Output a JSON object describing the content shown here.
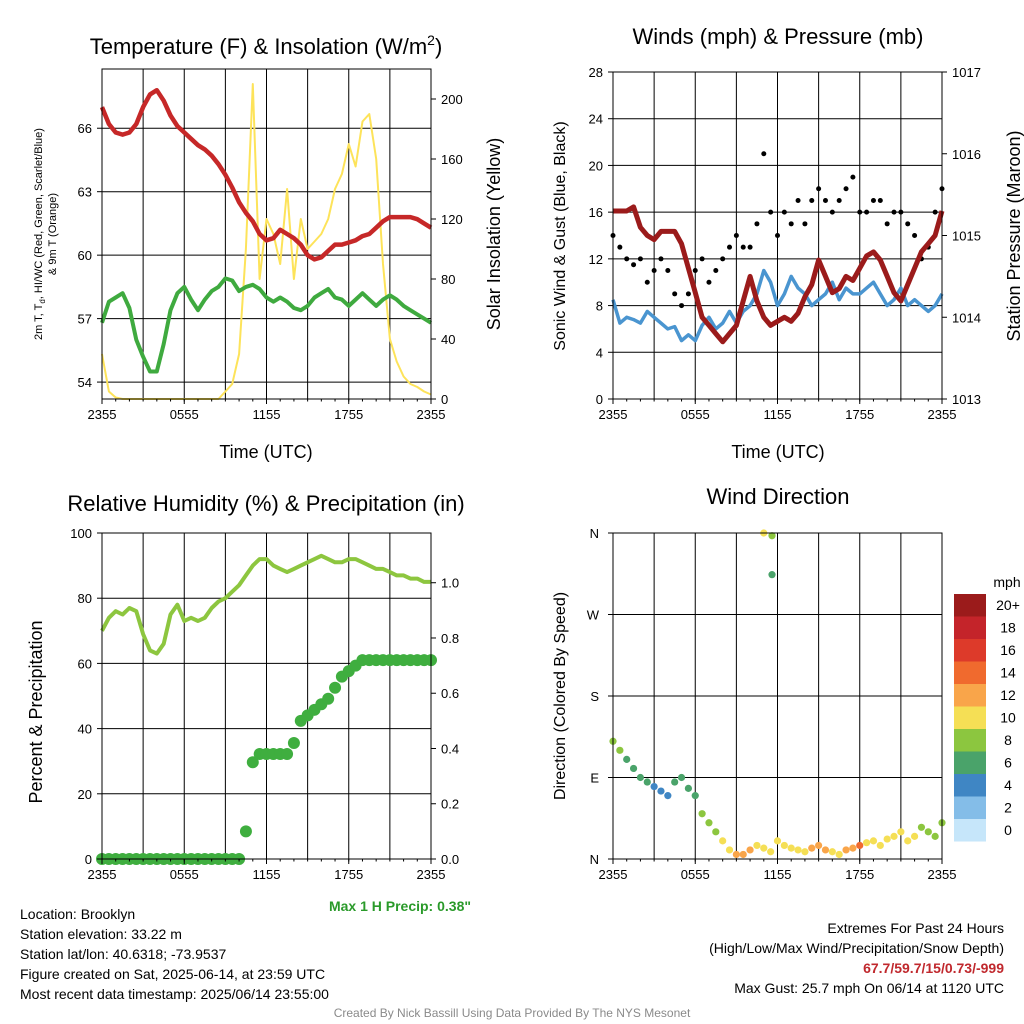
{
  "panels": {
    "temperature": {
      "title": "Temperature (F) & Insolation (W/m",
      "title_sup": "2",
      "title_end": ")",
      "ylabel_line1": "2m T, T",
      "ylabel_sub": "d",
      "ylabel_line1b": ", HI/WC (Red, Green, Scarlet/Blue)",
      "ylabel_line2": "& 9m T (Orange)",
      "y2label": "Solar Insolation (Yellow)",
      "xlabel": "Time (UTC)"
    },
    "winds": {
      "title": "Winds (mph) & Pressure (mb)",
      "ylabel": "Sonic Wind & Gust (Blue, Black)",
      "y2label": "Station Pressure (Maroon)",
      "xlabel": "Time (UTC)"
    },
    "humidity": {
      "title": "Relative Humidity (%) & Precipitation (in)",
      "ylabel": "Percent & Precipitation",
      "max_precip": "Max 1 H Precip: 0.38\""
    },
    "direction": {
      "title": "Wind Direction",
      "ylabel": "Direction (Colored By Speed)",
      "legend_title": "mph"
    }
  },
  "info": {
    "location": "Location: Brooklyn",
    "elevation": "Station elevation: 33.22 m",
    "latlon": "Station lat/lon: 40.6318; -73.9537",
    "created": "Figure created on Sat, 2025-06-14, at 23:59 UTC",
    "recent": "Most recent data timestamp: 2025/06/14 23:55:00",
    "extremes_title": "Extremes For Past 24 Hours",
    "extremes_sub": "(High/Low/Max Wind/Precipitation/Snow Depth)",
    "extremes_values": "67.7/59.7/15/0.73/-999",
    "max_gust": "Max Gust: 25.7 mph On 06/14 at 1120 UTC"
  },
  "credit": "Created By Nick Bassill Using Data Provided By The NYS Mesonet",
  "colors": {
    "temp": "#c62828",
    "heat_index": "#3faa3f",
    "scarlet_blue": "#4a90c8",
    "insolation": "#fde35a",
    "wind": "#4a95d0",
    "gust": "#000000",
    "pressure": "#9b1b1b",
    "rh": "#8dc63f",
    "precip": "#3fae3f",
    "max_precip_text": "#2a9a2a"
  },
  "chart_data": [
    {
      "type": "line",
      "title": "Temperature (F) & Insolation (W/m2)",
      "xlabel": "Time (UTC)",
      "ylabel": "2m T, Td, HI/WC (Red, Green, Scarlet/Blue) & 9m T (Orange)",
      "y2label": "Solar Insolation (Yellow)",
      "x_hours": [
        0,
        0.5,
        1,
        1.5,
        2,
        2.5,
        3,
        3.5,
        4,
        4.5,
        5,
        5.5,
        6,
        6.5,
        7,
        7.5,
        8,
        8.5,
        9,
        9.5,
        10,
        10.5,
        11,
        11.5,
        12,
        12.5,
        13,
        13.5,
        14,
        14.5,
        15,
        15.5,
        16,
        16.5,
        17,
        17.5,
        18,
        18.5,
        19,
        19.5,
        20,
        20.5,
        21,
        21.5,
        22,
        22.5,
        23,
        23.5,
        24
      ],
      "xticks": [
        "2355",
        "0555",
        "1155",
        "1755",
        "2355"
      ],
      "ylim": [
        53.2,
        68.8
      ],
      "yticks": [
        54,
        57,
        60,
        63,
        66
      ],
      "y2lim": [
        0,
        220
      ],
      "y2ticks": [
        0,
        40,
        80,
        120,
        160,
        200
      ],
      "series": [
        {
          "name": "2m T (Red)",
          "axis": "left",
          "values": [
            67,
            66.2,
            65.8,
            65.7,
            65.8,
            66.2,
            67,
            67.6,
            67.8,
            67.3,
            66.6,
            66.1,
            65.8,
            65.5,
            65.2,
            65,
            64.7,
            64.3,
            63.8,
            63.2,
            62.5,
            62,
            61.6,
            61,
            60.7,
            60.8,
            61.2,
            61,
            60.8,
            60.5,
            60,
            59.8,
            59.9,
            60.2,
            60.5,
            60.5,
            60.6,
            60.7,
            60.9,
            61,
            61.3,
            61.6,
            61.8,
            61.8,
            61.8,
            61.8,
            61.7,
            61.5,
            61.3
          ]
        },
        {
          "name": "Heat Index / Dew Point (Green)",
          "axis": "left",
          "values": [
            56.8,
            57.8,
            58,
            58.2,
            57.5,
            56,
            55.2,
            54.5,
            54.5,
            55.8,
            57.4,
            58.2,
            58.5,
            57.9,
            57.4,
            57.9,
            58.3,
            58.5,
            58.9,
            58.8,
            58.3,
            58.5,
            58.6,
            58.4,
            58,
            57.8,
            58,
            57.8,
            57.5,
            57.4,
            57.6,
            58,
            58.2,
            58.4,
            58,
            57.9,
            57.6,
            57.9,
            58.2,
            57.9,
            57.6,
            57.9,
            58.1,
            57.9,
            57.6,
            57.4,
            57.2,
            57,
            56.8
          ]
        },
        {
          "name": "Solar Insolation (Yellow)",
          "axis": "right",
          "values": [
            30,
            5,
            1,
            0,
            0,
            0,
            0,
            0,
            0,
            0,
            0,
            0,
            0,
            0,
            0,
            0,
            0,
            0,
            5,
            10,
            30,
            100,
            210,
            80,
            120,
            110,
            90,
            140,
            80,
            120,
            100,
            105,
            110,
            120,
            140,
            150,
            170,
            155,
            185,
            190,
            160,
            90,
            40,
            25,
            15,
            10,
            8,
            5,
            3
          ]
        }
      ]
    },
    {
      "type": "line",
      "title": "Winds (mph) & Pressure (mb)",
      "xlabel": "Time (UTC)",
      "ylabel": "Sonic Wind & Gust (Blue, Black)",
      "y2label": "Station Pressure (Maroon)",
      "x_hours": [
        0,
        0.5,
        1,
        1.5,
        2,
        2.5,
        3,
        3.5,
        4,
        4.5,
        5,
        5.5,
        6,
        6.5,
        7,
        7.5,
        8,
        8.5,
        9,
        9.5,
        10,
        10.5,
        11,
        11.5,
        12,
        12.5,
        13,
        13.5,
        14,
        14.5,
        15,
        15.5,
        16,
        16.5,
        17,
        17.5,
        18,
        18.5,
        19,
        19.5,
        20,
        20.5,
        21,
        21.5,
        22,
        22.5,
        23,
        23.5,
        24
      ],
      "xticks": [
        "2355",
        "0555",
        "1155",
        "1755",
        "2355"
      ],
      "ylim": [
        0,
        28
      ],
      "yticks": [
        0,
        4,
        8,
        12,
        16,
        20,
        24,
        28
      ],
      "y2lim": [
        1013,
        1017
      ],
      "y2ticks": [
        1013,
        1014,
        1015,
        1016,
        1017
      ],
      "series": [
        {
          "name": "Sonic Wind (Blue)",
          "axis": "left",
          "values": [
            8.5,
            6.5,
            7,
            6.8,
            6.5,
            7.5,
            7,
            6.5,
            6,
            6.2,
            5,
            5.5,
            5,
            6.3,
            7,
            6,
            6.5,
            7.5,
            6.5,
            7.5,
            8,
            9,
            11,
            10,
            8,
            9,
            10.5,
            9.5,
            9,
            8,
            8.5,
            9,
            10,
            8.5,
            9.5,
            9,
            9,
            9.5,
            10,
            9,
            8,
            8.5,
            9.5,
            8,
            8.5,
            8,
            7.5,
            8,
            9
          ]
        },
        {
          "name": "Gust (Black)",
          "axis": "left",
          "style": "points",
          "values": [
            14,
            13,
            12,
            11.5,
            12,
            10,
            11,
            12,
            11,
            9,
            8,
            9,
            11,
            12,
            10,
            11,
            12,
            13,
            14,
            13,
            13,
            15,
            21,
            16,
            14,
            16,
            15,
            17,
            15,
            17,
            18,
            17,
            16,
            17,
            18,
            19,
            16,
            16,
            17,
            17,
            15,
            16,
            16,
            15,
            14,
            12,
            13,
            16,
            18
          ]
        },
        {
          "name": "Station Pressure (Maroon)",
          "axis": "right",
          "values": [
            1015.3,
            1015.3,
            1015.3,
            1015.35,
            1015.1,
            1015,
            1014.95,
            1015.05,
            1015.05,
            1015.05,
            1014.9,
            1014.6,
            1014.3,
            1014,
            1013.9,
            1013.8,
            1013.7,
            1013.8,
            1013.9,
            1014.2,
            1014.5,
            1014.2,
            1014.0,
            1013.9,
            1013.95,
            1014.0,
            1013.95,
            1014.05,
            1014.25,
            1014.4,
            1014.7,
            1014.5,
            1014.3,
            1014.35,
            1014.5,
            1014.45,
            1014.6,
            1014.75,
            1014.8,
            1014.7,
            1014.5,
            1014.3,
            1014.2,
            1014.4,
            1014.6,
            1014.8,
            1014.9,
            1015.0,
            1015.3
          ]
        }
      ]
    },
    {
      "type": "line",
      "title": "Relative Humidity (%) & Precipitation (in)",
      "ylabel": "Percent & Precipitation",
      "x_hours": [
        0,
        0.5,
        1,
        1.5,
        2,
        2.5,
        3,
        3.5,
        4,
        4.5,
        5,
        5.5,
        6,
        6.5,
        7,
        7.5,
        8,
        8.5,
        9,
        9.5,
        10,
        10.5,
        11,
        11.5,
        12,
        12.5,
        13,
        13.5,
        14,
        14.5,
        15,
        15.5,
        16,
        16.5,
        17,
        17.5,
        18,
        18.5,
        19,
        19.5,
        20,
        20.5,
        21,
        21.5,
        22,
        22.5,
        23,
        23.5,
        24
      ],
      "xticks": [
        "2355",
        "0555",
        "1155",
        "1755",
        "2355"
      ],
      "ylim": [
        0,
        100
      ],
      "yticks": [
        0,
        20,
        40,
        60,
        80,
        100
      ],
      "y2lim": [
        0,
        1.18
      ],
      "y2ticks": [
        0.0,
        0.2,
        0.4,
        0.6,
        0.8,
        1.0
      ],
      "series": [
        {
          "name": "Relative Humidity",
          "axis": "left",
          "values": [
            70,
            74,
            76,
            75,
            77,
            76,
            69,
            64,
            63,
            66,
            75,
            78,
            73,
            74,
            73,
            74,
            77,
            79,
            80,
            82,
            84,
            87,
            90,
            92,
            92,
            90,
            89,
            88,
            89,
            90,
            91,
            92,
            93,
            92,
            91,
            91,
            92,
            92,
            91,
            90,
            89,
            89,
            88,
            87,
            87,
            86,
            86,
            85,
            85
          ]
        },
        {
          "name": "Precipitation (Cumulative)",
          "axis": "right",
          "style": "points",
          "values": [
            0,
            0,
            0,
            0,
            0,
            0,
            0,
            0,
            0,
            0,
            0,
            0,
            0,
            0,
            0,
            0,
            0,
            0,
            0,
            0,
            0,
            0.1,
            0.35,
            0.38,
            0.38,
            0.38,
            0.38,
            0.38,
            0.42,
            0.5,
            0.52,
            0.54,
            0.56,
            0.58,
            0.62,
            0.66,
            0.68,
            0.7,
            0.72,
            0.72,
            0.72,
            0.72,
            0.72,
            0.72,
            0.72,
            0.72,
            0.72,
            0.72,
            0.72
          ]
        }
      ],
      "annotation": "Max 1 H Precip: 0.38\""
    },
    {
      "type": "scatter",
      "title": "Wind Direction",
      "ylabel": "Direction (Colored By Speed)",
      "yticks": [
        "N",
        "E",
        "S",
        "W",
        "N"
      ],
      "ylim": [
        0,
        360
      ],
      "xticks": [
        "2355",
        "0555",
        "1155",
        "1755",
        "2355"
      ],
      "x_hours": [
        0,
        0.5,
        1,
        1.5,
        2,
        2.5,
        3,
        3.5,
        4,
        4.5,
        5,
        5.5,
        6,
        6.5,
        7,
        7.5,
        8,
        8.5,
        9,
        9.5,
        10,
        10.5,
        11,
        11.5,
        12,
        12.5,
        13,
        13.5,
        14,
        14.5,
        15,
        15.5,
        16,
        16.5,
        17,
        17.5,
        18,
        18.5,
        19,
        19.5,
        20,
        20.5,
        21,
        21.5,
        22,
        22.5,
        23,
        23.5,
        24
      ],
      "direction_deg": [
        130,
        120,
        110,
        100,
        90,
        85,
        80,
        75,
        70,
        85,
        90,
        78,
        70,
        50,
        40,
        30,
        20,
        10,
        5,
        5,
        10,
        15,
        12,
        8,
        20,
        15,
        12,
        10,
        8,
        12,
        15,
        10,
        8,
        5,
        10,
        12,
        15,
        18,
        20,
        15,
        22,
        25,
        30,
        20,
        25,
        35,
        30,
        25,
        40
      ],
      "speed_mph": [
        7,
        7,
        6,
        6,
        5,
        5,
        4,
        4,
        4,
        5,
        5,
        5,
        6,
        7,
        8,
        8,
        9,
        10,
        12,
        12,
        11,
        10,
        10,
        9,
        9,
        10,
        9,
        9,
        10,
        11,
        12,
        12,
        10,
        10,
        11,
        12,
        13,
        10,
        9,
        9,
        9,
        10,
        10,
        9,
        9,
        8,
        8,
        8,
        8
      ],
      "extra_points": [
        {
          "x_hours": 11.0,
          "direction_deg": 360,
          "speed_mph": 10
        },
        {
          "x_hours": 11.6,
          "direction_deg": 357,
          "speed_mph": 8
        },
        {
          "x_hours": 11.6,
          "direction_deg": 314,
          "speed_mph": 6
        }
      ],
      "legend": {
        "title": "mph",
        "placement": "right",
        "labels": [
          "20+",
          "18",
          "16",
          "14",
          "12",
          "10",
          "8",
          "6",
          "4",
          "2",
          "0"
        ],
        "colors": [
          "#9b1b1b",
          "#c4242a",
          "#dd3a2a",
          "#f06a2e",
          "#f9a54a",
          "#f5df55",
          "#8cc63f",
          "#4aa36a",
          "#3f86c4",
          "#84bde8",
          "#c6e6fa"
        ]
      }
    }
  ]
}
